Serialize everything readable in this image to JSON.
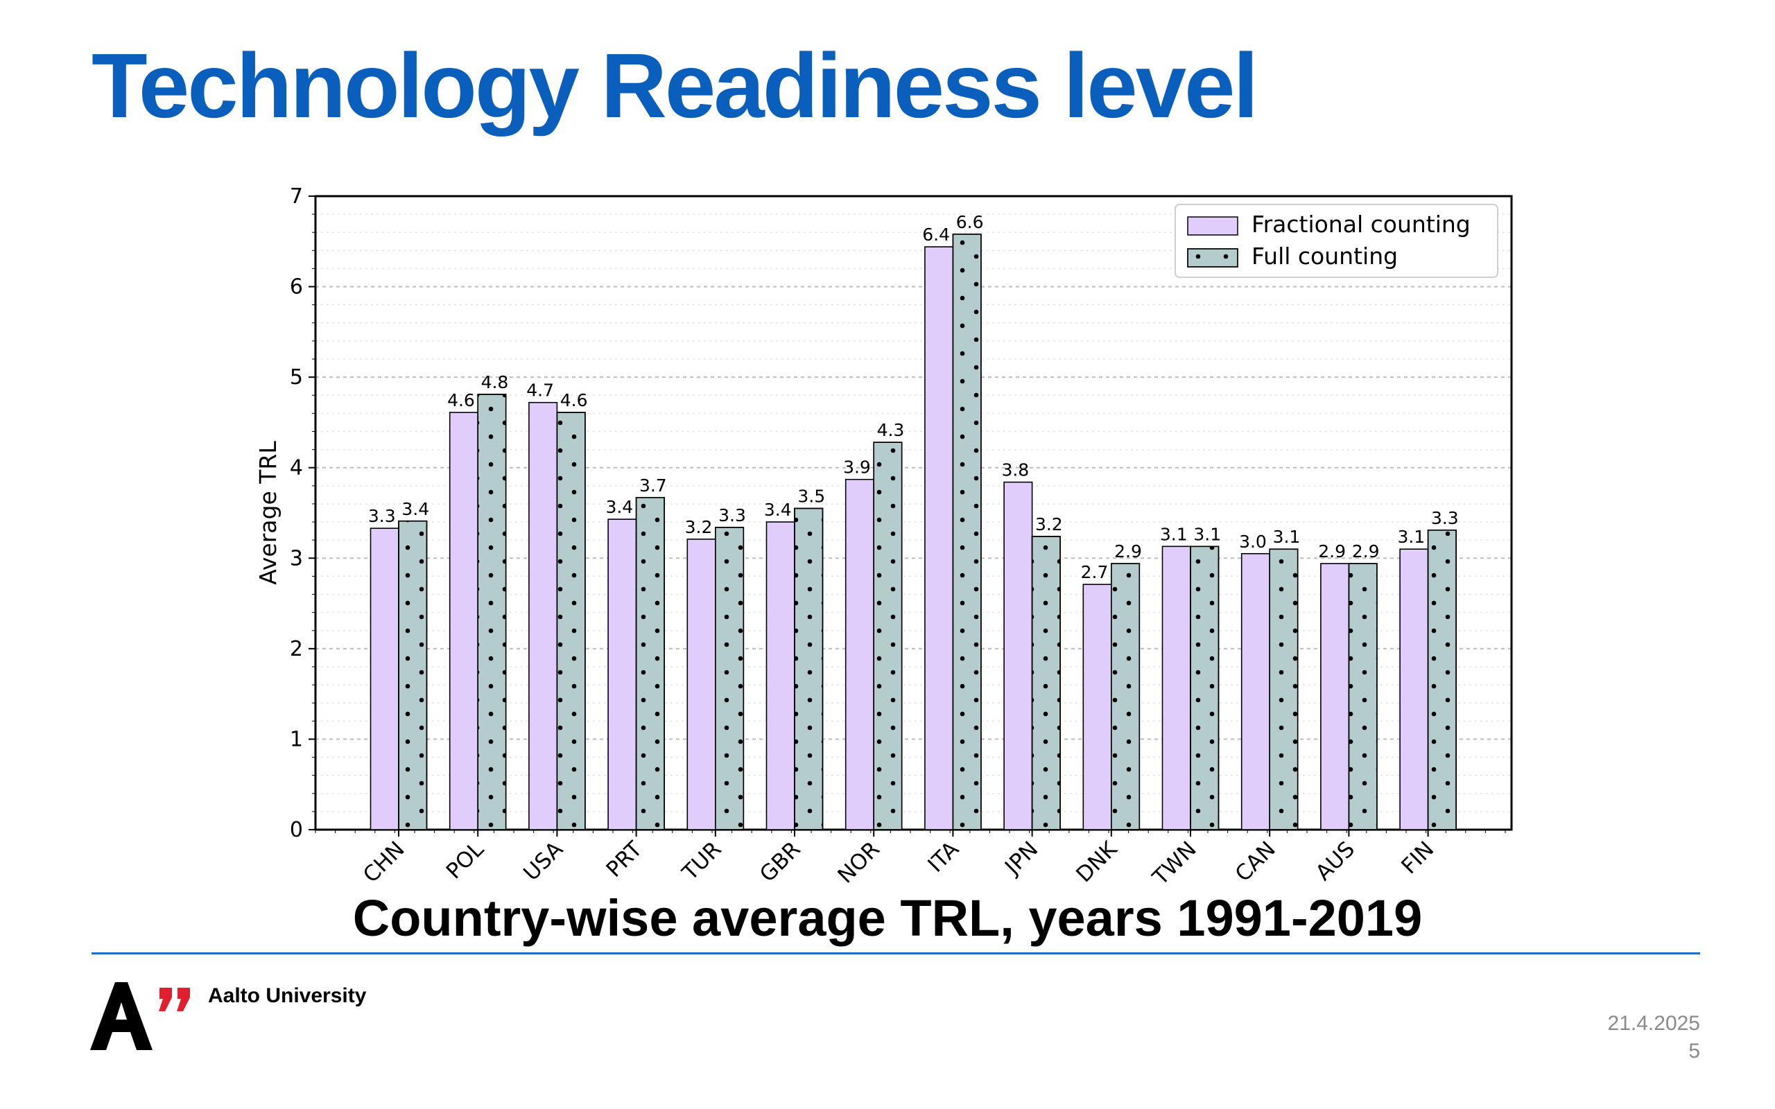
{
  "slide": {
    "title": "Technology Readiness level",
    "caption": "Country-wise average TRL, years 1991-2019",
    "footer": {
      "university": "Aalto University",
      "date": "21.4.2025",
      "page": "5"
    }
  },
  "colors": {
    "title": "#0a5fbd",
    "rule": "#1c6fcf",
    "fractional": "#e1cdfb",
    "full": "#b4cccc",
    "logo_black": "#000000",
    "logo_red": "#e0202f"
  },
  "chart_data": {
    "type": "bar",
    "title": "",
    "xlabel": "",
    "ylabel": "Average TRL",
    "ylim": [
      0,
      7
    ],
    "yticks": [
      "0",
      "1",
      "2",
      "3",
      "4",
      "5",
      "6",
      "7"
    ],
    "grid": true,
    "legend_position": "top-right",
    "categories": [
      "CHN",
      "POL",
      "USA",
      "PRT",
      "TUR",
      "GBR",
      "NOR",
      "ITA",
      "JPN",
      "DNK",
      "TWN",
      "CAN",
      "AUS",
      "FIN"
    ],
    "series": [
      {
        "name": "Fractional counting",
        "values": [
          3.33,
          4.61,
          4.72,
          3.43,
          3.21,
          3.4,
          3.87,
          6.44,
          3.84,
          2.71,
          3.13,
          3.05,
          2.94,
          3.1
        ],
        "labels": [
          "3.3",
          "4.6",
          "4.7",
          "3.4",
          "3.2",
          "3.4",
          "3.9",
          "6.4",
          "3.8",
          "2.7",
          "3.1",
          "3.0",
          "2.9",
          "3.1"
        ]
      },
      {
        "name": "Full counting",
        "values": [
          3.41,
          4.81,
          4.61,
          3.67,
          3.34,
          3.55,
          4.28,
          6.58,
          3.24,
          2.94,
          3.13,
          3.1,
          2.94,
          3.31
        ],
        "labels": [
          "3.4",
          "4.8",
          "4.6",
          "3.7",
          "3.3",
          "3.5",
          "4.3",
          "6.6",
          "3.2",
          "2.9",
          "3.1",
          "3.1",
          "2.9",
          "3.3"
        ]
      }
    ]
  }
}
